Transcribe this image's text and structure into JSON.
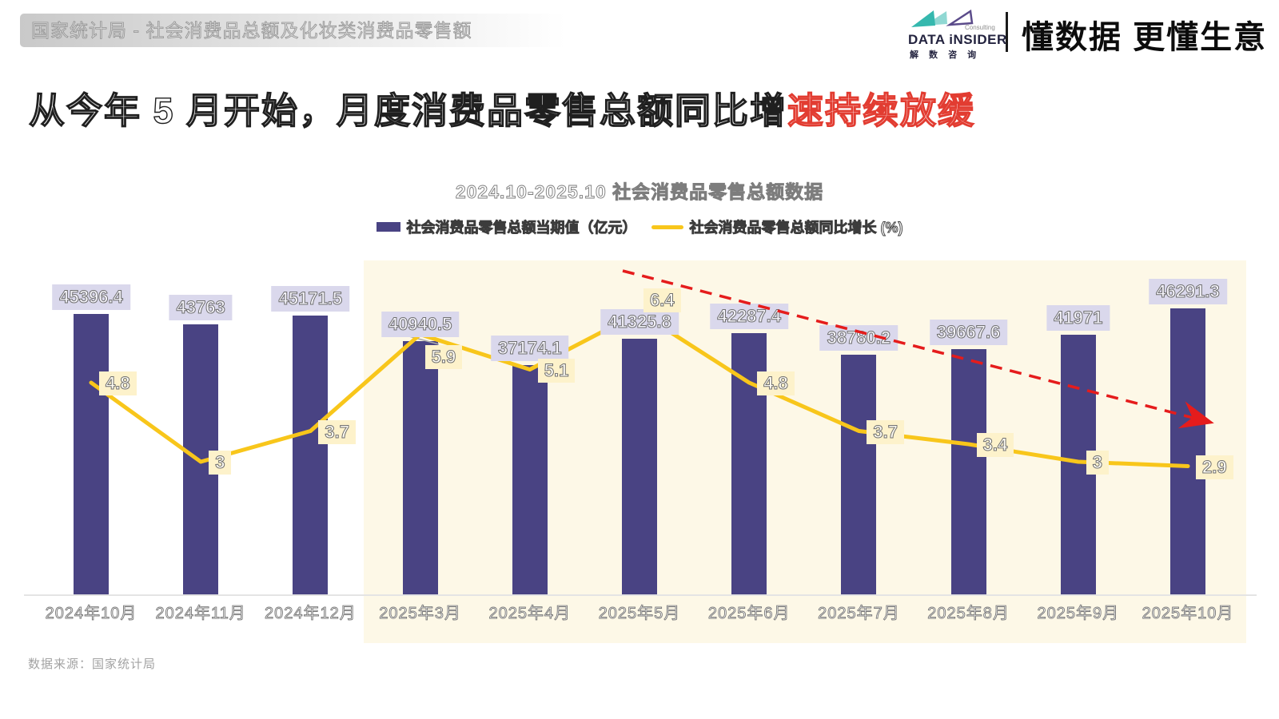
{
  "header": {
    "breadcrumb": "国家统计局 - 社会消费品总额及化妆类消费品零售额"
  },
  "brand": {
    "name": "DATA iNSIDER",
    "consulting": "Consulting",
    "name_cn": "解 数 咨 询",
    "slogan": "懂数据 更懂生意",
    "logo_icon": "bowtie-triangles-icon",
    "teal": "#35b8ae",
    "purple": "#5b4b8a"
  },
  "title": {
    "prefix": "从今年 5 月开始，月度消费品零售总额同比增",
    "highlight": "速持续放缓",
    "highlight_color": "#e23c31"
  },
  "chart_data": {
    "type": "bar+line",
    "title": "2024.10-2025.10  社会消费品零售总额数据",
    "categories": [
      "2024年10月",
      "2024年11月",
      "2024年12月",
      "2025年3月",
      "2025年4月",
      "2025年5月",
      "2025年6月",
      "2025年7月",
      "2025年8月",
      "2025年9月",
      "2025年10月"
    ],
    "series": [
      {
        "name": "社会消费品零售总额当期值（亿元）",
        "type": "bar",
        "color": "#494383",
        "label_bg": "#dad8ec",
        "values": [
          45396.4,
          43763,
          45171.5,
          40940.5,
          37174.1,
          41325.8,
          42287.4,
          38780.2,
          39667.6,
          41971,
          46291.3
        ]
      },
      {
        "name": "社会消费品零售总额同比增长 (%)",
        "type": "line",
        "color": "#f8c61b",
        "label_bg": "#fdf2cb",
        "values": [
          4.8,
          3,
          3.7,
          5.9,
          5.1,
          6.4,
          4.8,
          3.7,
          3.4,
          3,
          2.9
        ]
      }
    ],
    "ylim_bar": [
      0,
      47000
    ],
    "ylim_line": [
      0,
      13.5
    ],
    "grid": false,
    "legend_position": "top",
    "highlight": {
      "from_category": "2025年3月",
      "to_category": "2025年10月",
      "bg": "#fdf8e7"
    },
    "trend_arrow": {
      "direction": "down",
      "color": "#e51c1c",
      "style": "dashed"
    }
  },
  "footer": {
    "source": "数据来源：国家统计局"
  }
}
